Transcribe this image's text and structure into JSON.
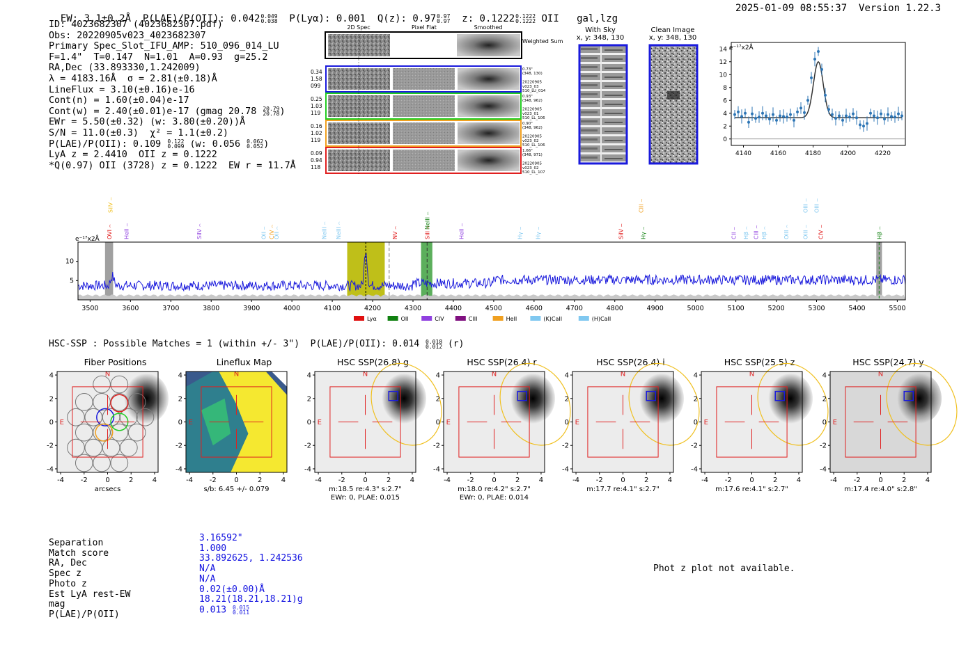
{
  "header": {
    "ew": "EW: 3.1±0.2Å",
    "plae_label": "P(LAE)/P(OII): 0.042",
    "plae_hi": "0.049",
    "plae_lo": "0.038",
    "plya": "P(Lyα): 0.001",
    "qz": "Q(z): 0.97",
    "qz_hi": "0.97",
    "qz_lo": "0.97",
    "z": "z: 0.1222",
    "z_hi": "0.1222",
    "z_lo": "0.1222",
    "z_line": "OII",
    "flags": "gal,lzg",
    "timestamp": "2025-01-09 08:55:37",
    "version": "Version 1.22.3"
  },
  "info": {
    "id": "ID: 4023682307 (4023682307.pdf)",
    "obs": "Obs: 20220905v023_4023682307",
    "primary": "Primary Spec_Slot_IFU_AMP: 510_096_014_LU",
    "fit": "F=1.4\"  T=0.147  N=1.01  A=0.93  g=25.2",
    "radec": "RA,Dec (33.893330,1.242009)",
    "lambda": "λ = 4183.16Å  σ = 2.81(±0.18)Å",
    "lineflux": "LineFlux = 3.10(±0.16)e-16",
    "contn": "Cont(n) = 1.60(±0.04)e-17",
    "contw": "Cont(w) = 2.40(±0.01)e-17 (gmag 20.78",
    "contw_hi": "20.79",
    "contw_lo": "20.78",
    "ewr": "EWr = 5.50(±0.32) (w: 3.80(±0.20))Å",
    "sn": "S/N = 11.0(±0.3)  χ² = 1.1(±0.2)",
    "plae": "P(LAE)/P(OII): 0.109",
    "plae_hi": "0.122",
    "plae_lo": "0.099",
    "plae_w": "(w: 0.056",
    "plae_w_hi": "0.062",
    "plae_w_lo": "0.052",
    "plae_close": ")",
    "lya": "LyA z = 2.4410  OII z = 0.1222",
    "q": "*Q(0.97) OII (3728) z = 0.1222  EW r = 11.7Å"
  },
  "spec2d": {
    "col_titles": [
      "2D Spec",
      "Pixel Flat",
      "Smoothed"
    ],
    "weighted_sum": "Weighted Sum",
    "rows": [
      {
        "vals": [
          "0.34",
          "1.58",
          "099"
        ],
        "color": "#1a1adc",
        "note": [
          "0.73\"",
          "(348, 130)",
          "",
          "20220905",
          "v023_03",
          "510_LU_014"
        ]
      },
      {
        "vals": [
          "0.25",
          "1.03",
          "119"
        ],
        "color": "#22cc22",
        "note": [
          "0.93\"",
          "(348, 962)",
          "",
          "20220905",
          "v023_01",
          "510_LL_106"
        ]
      },
      {
        "vals": [
          "0.16",
          "1.02",
          "119"
        ],
        "color": "#f0a020",
        "note": [
          "0.90\"",
          "(348, 962)",
          "",
          "20220905",
          "v023_02",
          "510_LL_106"
        ]
      },
      {
        "vals": [
          "0.09",
          "0.94",
          "118"
        ],
        "color": "#e02020",
        "note": [
          "1.66\"",
          "(348, 971)",
          "",
          "20220905",
          "v023_02",
          "510_LL_107"
        ]
      }
    ]
  },
  "sky": {
    "with_sky_title": "With Sky",
    "with_sky_xy": "x, y: 348, 130",
    "clean_title": "Clean Image",
    "clean_xy": "x, y: 348, 130"
  },
  "fitplot": {
    "unit": "e⁻¹⁷x2Å",
    "xticks": [
      "4140",
      "4160",
      "4180",
      "4200",
      "4220"
    ],
    "yticks": [
      "0",
      "2",
      "4",
      "6",
      "8",
      "10",
      "12",
      "14"
    ]
  },
  "spectrum": {
    "unit": "e⁻¹⁷x2Å",
    "yticks": [
      "5",
      "10"
    ],
    "xticks": [
      "3500",
      "3600",
      "3700",
      "3800",
      "3900",
      "4000",
      "4100",
      "4200",
      "4300",
      "4400",
      "4500",
      "4600",
      "4700",
      "4800",
      "4900",
      "5000",
      "5100",
      "5200",
      "5300",
      "5400",
      "5500"
    ],
    "legend": [
      {
        "label": "Lyα",
        "color": "#e01010"
      },
      {
        "label": "OII",
        "color": "#108010"
      },
      {
        "label": "CIV",
        "color": "#9040e0"
      },
      {
        "label": "CIII",
        "color": "#801080"
      },
      {
        "label": "HeII",
        "color": "#f0a020"
      },
      {
        "label": "(K)CaII",
        "color": "#80c8f0"
      },
      {
        "label": "(H)CaII",
        "color": "#80c8f0"
      }
    ],
    "lines": [
      {
        "name": "SiIV",
        "w": 3550,
        "row": 0,
        "color": "#f0c020"
      },
      {
        "name": "OVI",
        "w": 3548,
        "row": 2,
        "color": "#e01010"
      },
      {
        "name": "HeII",
        "w": 3590,
        "row": 2,
        "color": "#9040e0"
      },
      {
        "name": "SiIV",
        "w": 3770,
        "row": 2,
        "color": "#9040e0"
      },
      {
        "name": "OII",
        "w": 3930,
        "row": 2,
        "color": "#80c8f0"
      },
      {
        "name": "CIV",
        "w": 3950,
        "row": 2,
        "color": "#f0a020"
      },
      {
        "name": "OII",
        "w": 3962,
        "row": 2,
        "color": "#80c8f0"
      },
      {
        "name": "NeIII",
        "w": 4080,
        "row": 2,
        "color": "#80c8f0"
      },
      {
        "name": "NeIII",
        "w": 4115,
        "row": 2,
        "color": "#80c8f0"
      },
      {
        "name": "NV",
        "w": 4255,
        "row": 2,
        "color": "#e01010"
      },
      {
        "name": "NeIII",
        "w": 4335,
        "row": 1,
        "color": "#108010"
      },
      {
        "name": "SiII",
        "w": 4335,
        "row": 2,
        "color": "#e01010"
      },
      {
        "name": "HeII",
        "w": 4420,
        "row": 2,
        "color": "#9040e0"
      },
      {
        "name": "Hγ",
        "w": 4565,
        "row": 2,
        "color": "#80c8f0"
      },
      {
        "name": "Hγ",
        "w": 4610,
        "row": 2,
        "color": "#80c8f0"
      },
      {
        "name": "CIII",
        "w": 4865,
        "row": 0,
        "color": "#f0a020"
      },
      {
        "name": "SiIV",
        "w": 4815,
        "row": 2,
        "color": "#e01010"
      },
      {
        "name": "Hγ",
        "w": 4870,
        "row": 2,
        "color": "#108010"
      },
      {
        "name": "CII",
        "w": 5095,
        "row": 2,
        "color": "#9040e0"
      },
      {
        "name": "Hβ",
        "w": 5125,
        "row": 2,
        "color": "#80c8f0"
      },
      {
        "name": "CIII",
        "w": 5150,
        "row": 2,
        "color": "#9040e0"
      },
      {
        "name": "Hβ",
        "w": 5170,
        "row": 2,
        "color": "#80c8f0"
      },
      {
        "name": "OIII",
        "w": 5225,
        "row": 2,
        "color": "#80c8f0"
      },
      {
        "name": "OIII",
        "w": 5272,
        "row": 0,
        "color": "#80c8f0"
      },
      {
        "name": "OIII",
        "w": 5300,
        "row": 0,
        "color": "#80c8f0"
      },
      {
        "name": "OIII",
        "w": 5272,
        "row": 2,
        "color": "#80c8f0"
      },
      {
        "name": "CIV",
        "w": 5310,
        "row": 2,
        "color": "#e01010"
      },
      {
        "name": "Hβ",
        "w": 5455,
        "row": 2,
        "color": "#108010"
      }
    ]
  },
  "hsc": {
    "heading": "HSC-SSP : Possible Matches = 1 (within +/- 3\")  P(LAE)/P(OII): 0.014",
    "heading_hi": "0.018",
    "heading_lo": "0.012",
    "heading_band": "(r)",
    "panels": [
      {
        "title": "Fiber Positions",
        "caption1": "arcsecs",
        "caption2": ""
      },
      {
        "title": "Lineflux Map",
        "caption1": "s/b: 6.45 +/- 0.079",
        "caption2": ""
      },
      {
        "title": "HSC SSP(26.8) g",
        "caption1": "m:18.5  re:4.3\"  s:2.7\"",
        "caption2": "EWr: 0, PLAE: 0.015"
      },
      {
        "title": "HSC SSP(26.4) r",
        "caption1": "m:18.0  re:4.2\"  s:2.7\"",
        "caption2": "EWr: 0, PLAE: 0.014"
      },
      {
        "title": "HSC SSP(26.4) i",
        "caption1": "m:17.7  re:4.1\"  s:2.7\"",
        "caption2": ""
      },
      {
        "title": "HSC SSP(25.5) z",
        "caption1": "m:17.6  re:4.1\"  s:2.7\"",
        "caption2": ""
      },
      {
        "title": "HSC SSP(24.7) y",
        "caption1": "m:17.4  re:4.0\"  s:2.8\"",
        "caption2": ""
      }
    ],
    "xticks": [
      "-4",
      "-2",
      "0",
      "2",
      "4"
    ],
    "yticks": [
      "4",
      "2",
      "0",
      "-2",
      "-4"
    ],
    "n_label": "N",
    "e_label": "E"
  },
  "match": {
    "labels": [
      "Separation",
      "Match score",
      "RA, Dec",
      "Spec z",
      "Photo z",
      "Est LyA rest-EW",
      "mag",
      "P(LAE)/P(OII)"
    ],
    "values": [
      "3.16592\"",
      "1.000",
      "33.892625, 1.242536",
      "N/A",
      "N/A",
      "0.02(±0.00)Å",
      "18.21(18.21,18.21)g",
      "0.013"
    ],
    "plae_hi": "0.015",
    "plae_lo": "0.011",
    "photz_msg": "Phot z plot not available."
  },
  "chart_data": [
    {
      "type": "line",
      "title": "",
      "xlabel": "",
      "ylabel": "e⁻¹⁷x2Å",
      "xlim": [
        3470,
        5520
      ],
      "ylim": [
        0,
        15
      ],
      "grid": false,
      "series": [
        {
          "name": "",
          "color": "#1a1adc",
          "x": [
            3470,
            5520
          ],
          "y": [
            4.3,
            4.3
          ]
        }
      ],
      "highlights": [
        {
          "x0": 4137,
          "x1": 4230,
          "color": "#b8b800"
        },
        {
          "x0": 4320,
          "x1": 4348,
          "color": "#4aa64a"
        }
      ],
      "vlines": [
        4183,
        4241,
        4335
      ]
    },
    {
      "type": "scatter",
      "title": "",
      "xlabel": "",
      "ylabel": "e⁻¹⁷x2Å",
      "xlim": [
        4133,
        4233
      ],
      "ylim": [
        -1,
        15
      ],
      "series": [
        {
          "name": "",
          "color": "#2d75b5",
          "x": [
            4135,
            4137,
            4139,
            4141,
            4143,
            4145,
            4147,
            4149,
            4151,
            4153,
            4155,
            4157,
            4159,
            4161,
            4163,
            4165,
            4167,
            4169,
            4171,
            4173,
            4175,
            4177,
            4179,
            4181,
            4183,
            4185,
            4187,
            4189,
            4191,
            4193,
            4195,
            4197,
            4199,
            4201,
            4203,
            4205,
            4207,
            4209,
            4211,
            4213,
            4215,
            4217,
            4219,
            4221,
            4223,
            4225,
            4227,
            4229,
            4231
          ],
          "y": [
            3.8,
            4.2,
            3.5,
            4.0,
            2.6,
            3.9,
            3.2,
            3.4,
            4.0,
            3.6,
            3.1,
            3.8,
            2.9,
            3.6,
            3.5,
            3.4,
            3.8,
            2.9,
            4.2,
            4.8,
            4.1,
            6.0,
            9.5,
            12.4,
            13.6,
            10.8,
            6.8,
            4.6,
            3.8,
            3.2,
            3.6,
            2.9,
            3.6,
            3.4,
            3.9,
            3.3,
            2.2,
            2.0,
            2.4,
            4.0,
            3.6,
            3.3,
            3.9,
            3.1,
            3.8,
            3.5,
            3.4,
            3.9,
            3.6
          ]
        },
        {
          "name": "",
          "color": "#333333",
          "x": [
            4135,
            4183,
            4231
          ],
          "y": [
            3.3,
            12.0,
            3.3
          ]
        }
      ]
    }
  ]
}
